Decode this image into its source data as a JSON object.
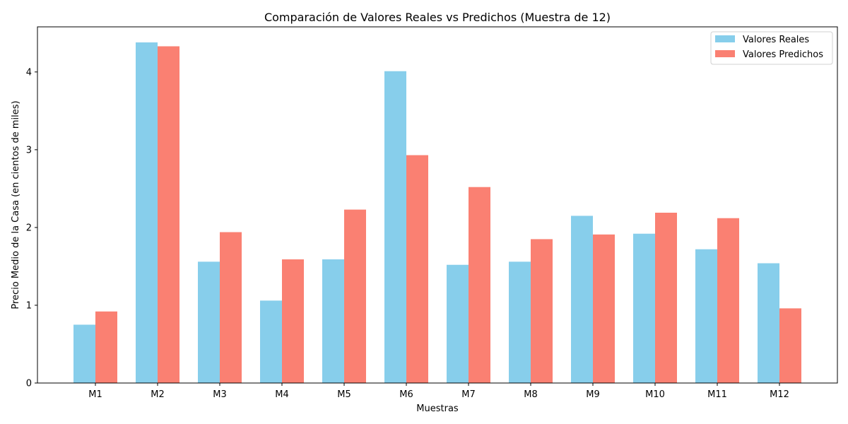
{
  "chart_data": {
    "type": "bar",
    "title": "Comparación de Valores Reales vs Predichos (Muestra de 12)",
    "xlabel": "Muestras",
    "ylabel": "Precio Medio de la Casa (en cientos de miles)",
    "categories": [
      "M1",
      "M2",
      "M3",
      "M4",
      "M5",
      "M6",
      "M7",
      "M8",
      "M9",
      "M10",
      "M11",
      "M12"
    ],
    "series": [
      {
        "name": "Valores Reales",
        "color": "#87CEEB",
        "values": [
          0.75,
          4.38,
          1.56,
          1.06,
          1.59,
          4.01,
          1.52,
          1.56,
          2.15,
          1.92,
          1.72,
          1.54
        ]
      },
      {
        "name": "Valores Predichos",
        "color": "#FA8072",
        "values": [
          0.92,
          4.33,
          1.94,
          1.59,
          2.23,
          2.93,
          2.52,
          1.85,
          1.91,
          2.19,
          2.12,
          0.96
        ]
      }
    ],
    "ylim": [
      0,
      4.58
    ],
    "yticks": [
      0,
      1,
      2,
      3,
      4
    ],
    "grid": false,
    "legend_position": "top-right"
  }
}
